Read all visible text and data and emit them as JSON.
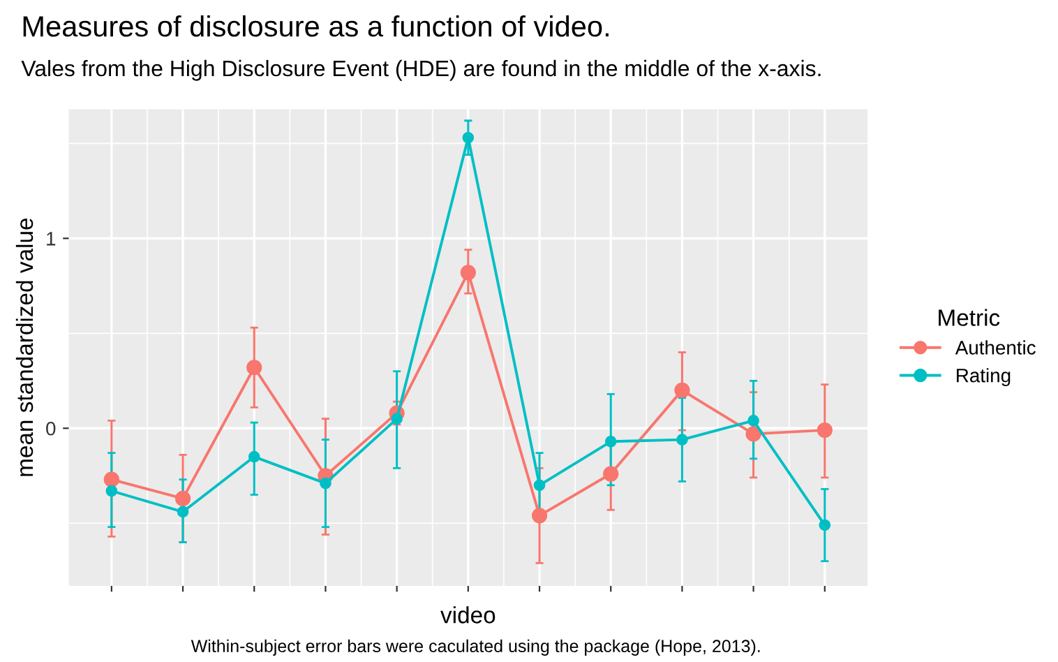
{
  "chart_data": {
    "type": "line",
    "title": "Measures of disclosure as a function of video.",
    "subtitle": "Vales from the High Disclosure Event (HDE) are found in the middle of the x-axis.",
    "xlabel": "video",
    "ylabel": "mean standardized value",
    "legend_title": "Metric",
    "annotations": [
      "Within-subject error bars were caculated using the package (Hope, 2013)."
    ],
    "categories": [
      null,
      null,
      null,
      null,
      null,
      null,
      null,
      null,
      null,
      null,
      null
    ],
    "series": [
      {
        "name": "Authentic",
        "color": "#f8766d",
        "values": [
          -0.27,
          -0.37,
          0.32,
          -0.25,
          0.08,
          0.82,
          -0.46,
          -0.24,
          0.2,
          -0.03,
          -0.01
        ],
        "errors": [
          [
            -0.57,
            0.04
          ],
          [
            -0.6,
            -0.14
          ],
          [
            0.11,
            0.53
          ],
          [
            -0.56,
            0.05
          ],
          [
            0.02,
            0.14
          ],
          [
            0.71,
            0.94
          ],
          [
            -0.71,
            -0.21
          ],
          [
            -0.43,
            -0.05
          ],
          [
            -0.01,
            0.4
          ],
          [
            -0.26,
            0.19
          ],
          [
            -0.26,
            0.23
          ]
        ]
      },
      {
        "name": "Rating",
        "color": "#00bfc4",
        "values": [
          -0.33,
          -0.44,
          -0.15,
          -0.29,
          0.05,
          1.53,
          -0.3,
          -0.07,
          -0.06,
          0.04,
          -0.51
        ],
        "errors": [
          [
            -0.52,
            -0.13
          ],
          [
            -0.6,
            -0.27
          ],
          [
            -0.35,
            0.03
          ],
          [
            -0.52,
            -0.06
          ],
          [
            -0.21,
            0.3
          ],
          [
            1.44,
            1.62
          ],
          [
            -0.47,
            -0.13
          ],
          [
            -0.3,
            0.18
          ],
          [
            -0.28,
            0.16
          ],
          [
            -0.16,
            0.25
          ],
          [
            -0.7,
            -0.32
          ]
        ]
      }
    ],
    "ylim": [
      -0.83,
      1.68
    ],
    "yticks": [
      0,
      1
    ],
    "grid": true,
    "legend": "right",
    "marker": "circle",
    "line_style": "solid"
  }
}
